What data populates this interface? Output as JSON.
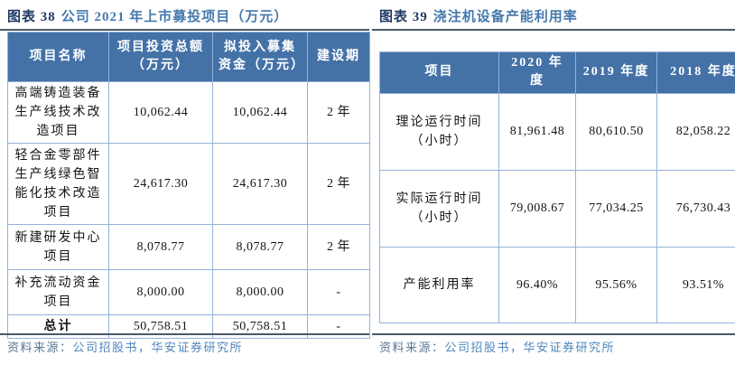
{
  "colors": {
    "header_fill": "#4472a7",
    "header_separator": "#2b5180",
    "cell_border": "#95b3d7",
    "rule": "#4c5866",
    "title_prefix": "#1f3864",
    "title_text": "#4579ad",
    "source_label": "#5b7794",
    "source_text": "#4f86bd",
    "header_text": "#ffffff",
    "body_text": "#151515",
    "background": "#ffffff"
  },
  "figures": [
    {
      "title_prefix": "图表 38",
      "title": "公司 2021 年上市募投项目（万元）",
      "source_label": "资料来源：",
      "source_text": "公司招股书，华安证券研究所",
      "table": {
        "total_label": "总计",
        "headers": [
          "项目名称",
          "项目投资总额（万元）",
          "拟投入募集资金（万元）",
          "建设期"
        ],
        "rows": [
          [
            "高端铸造装备生产线技术改造项目",
            "10,062.44",
            "10,062.44",
            "2 年"
          ],
          [
            "轻合金零部件生产线绿色智能化技术改造项目",
            "24,617.30",
            "24,617.30",
            "2 年"
          ],
          [
            "新建研发中心项目",
            "8,078.77",
            "8,078.77",
            "2 年"
          ],
          [
            "补充流动资金项目",
            "8,000.00",
            "8,000.00",
            "-"
          ],
          [
            "总计",
            "50,758.51",
            "50,758.51",
            "-"
          ]
        ]
      }
    },
    {
      "title_prefix": "图表 39",
      "title": "浇注机设备产能利用率",
      "source_label": "资料来源：",
      "source_text": "公司招股书，华安证券研究所",
      "table": {
        "total_label": "",
        "headers": [
          "项目",
          "2020 年度",
          "2019 年度",
          "2018 年度"
        ],
        "rows": [
          [
            "理论运行时间（小时）",
            "81,961.48",
            "80,610.50",
            "82,058.22"
          ],
          [
            "实际运行时间（小时）",
            "79,008.67",
            "77,034.25",
            "76,730.43"
          ],
          [
            "产能利用率",
            "96.40%",
            "95.56%",
            "93.51%"
          ]
        ]
      }
    }
  ]
}
